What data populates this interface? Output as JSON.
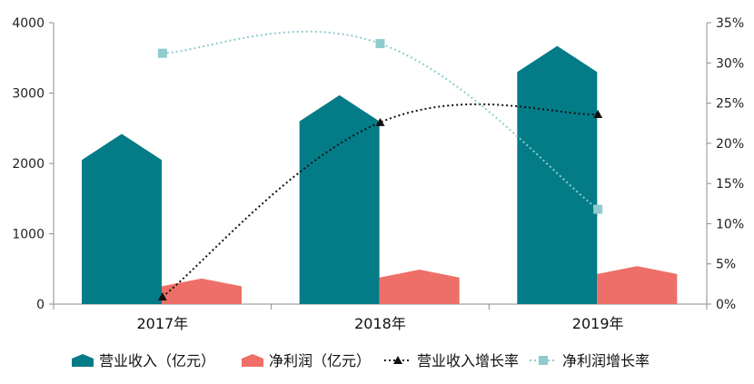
{
  "chart_data": {
    "type": "bar",
    "categories": [
      "2017年",
      "2018年",
      "2019年"
    ],
    "series": [
      {
        "name": "营业收入（亿元）",
        "kind": "bar",
        "axis": "left",
        "color": "#047c87",
        "values": [
          2420,
          2970,
          3670
        ]
      },
      {
        "name": "净利润（亿元）",
        "kind": "bar",
        "axis": "left",
        "color": "#ed6f67",
        "values": [
          365,
          490,
          540
        ]
      },
      {
        "name": "营业收入增长率",
        "kind": "line",
        "axis": "right",
        "color": "#111111",
        "marker": "triangle",
        "line_style": "dotted",
        "values": [
          0.9,
          22.6,
          23.6
        ]
      },
      {
        "name": "净利润增长率",
        "kind": "line",
        "axis": "right",
        "color": "#8fcbcf",
        "marker": "square",
        "line_style": "dotted",
        "values": [
          31.2,
          32.4,
          11.8
        ]
      }
    ],
    "y_left": {
      "min": 0,
      "max": 4000,
      "ticks": [
        "0",
        "1000",
        "2000",
        "3000",
        "4000"
      ]
    },
    "y_right": {
      "min": 0,
      "max": 35,
      "ticks": [
        "0%",
        "5%",
        "10%",
        "15%",
        "20%",
        "25%",
        "30%",
        "35%"
      ]
    },
    "legend_position": "bottom",
    "grid": false
  }
}
